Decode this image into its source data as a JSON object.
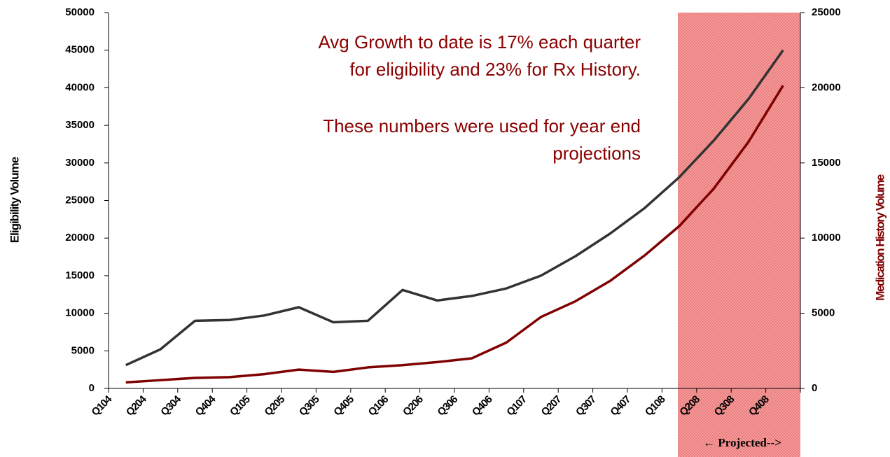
{
  "chart_data": {
    "type": "line",
    "categories": [
      "Q104",
      "Q204",
      "Q304",
      "Q404",
      "Q105",
      "Q205",
      "Q305",
      "Q405",
      "Q106",
      "Q206",
      "Q306",
      "Q406",
      "Q107",
      "Q207",
      "Q307",
      "Q407",
      "Q108",
      "Q208",
      "Q308",
      "Q408"
    ],
    "series": [
      {
        "color": "#333333",
        "values": [
          3100,
          5200,
          9000,
          9100,
          9700,
          10800,
          8800,
          9000,
          13100,
          11700,
          12300,
          13300,
          15000,
          17600,
          20600,
          24000,
          28100,
          33000,
          38500,
          45000
        ]
      },
      {
        "color": "#7f0000",
        "axis": "y2",
        "values": [
          400,
          550,
          700,
          750,
          950,
          1250,
          1100,
          1400,
          1550,
          1750,
          2000,
          3050,
          4750,
          5800,
          7150,
          8850,
          10800,
          13300,
          16400,
          20150
        ]
      }
    ],
    "ylabel": "Eligibility Volume",
    "y2label": "Medication History Volume",
    "ylim": [
      0,
      50000
    ],
    "yticks": [
      0,
      5000,
      10000,
      15000,
      20000,
      25000,
      30000,
      35000,
      40000,
      45000,
      50000
    ],
    "y2lim": [
      0,
      25000
    ],
    "y2ticks": [
      0,
      5000,
      10000,
      15000,
      20000,
      25000
    ],
    "grid": false,
    "annotations": [
      "Avg Growth to date is 17% each quarter",
      "for eligibility and 23% for Rx History.",
      "These numbers were used for year end",
      "projections"
    ],
    "projected_label": "← Projected-->"
  }
}
